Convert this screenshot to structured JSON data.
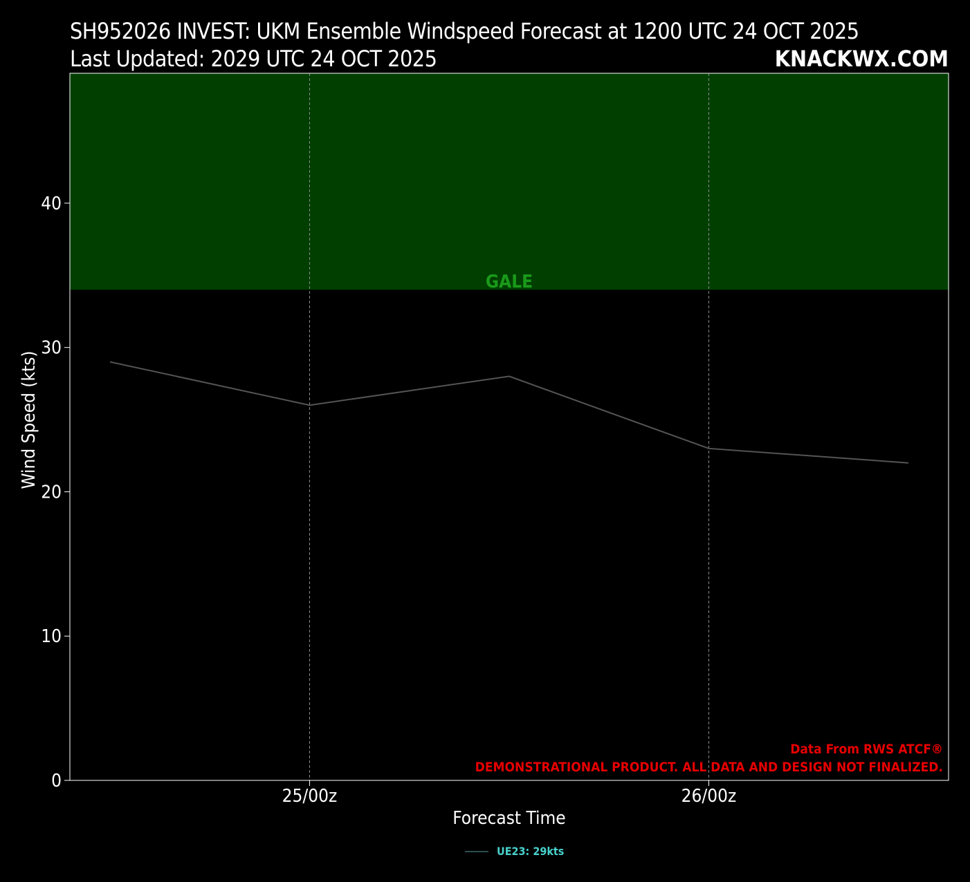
{
  "header": {
    "title_line1": "SH952026 INVEST: UKM Ensemble Windspeed Forecast at 1200 UTC 24 OCT 2025",
    "title_line2": "Last Updated: 2029 UTC 24 OCT 2025",
    "brand": "KNACKWX.COM"
  },
  "chart_data": {
    "type": "line",
    "title": "SH952026 INVEST: UKM Ensemble Windspeed Forecast at 1200 UTC 24 OCT 2025",
    "xlabel": "Forecast Time",
    "ylabel": "Wind Speed (kts)",
    "x_ticks": [
      "25/00z",
      "26/00z"
    ],
    "x": [
      "24/12z",
      "25/00z",
      "25/12z",
      "26/00z",
      "26/12z"
    ],
    "y_ticks": [
      0,
      10,
      20,
      30,
      40
    ],
    "ylim": [
      0,
      49
    ],
    "grid": "vertical dashed at x ticks",
    "bands": [
      {
        "label": "GALE",
        "from": 34,
        "to": 49,
        "color": "#003f00",
        "label_color": "#1a9a1a"
      }
    ],
    "series": [
      {
        "name": "UE23: 29kts",
        "values": [
          29,
          26,
          28,
          23,
          22
        ],
        "color": "#555555"
      }
    ],
    "legend_color": "#48d1cc",
    "legend_placement": "bottom-center",
    "annotations": [
      "Data From RWS ATCF®",
      "DEMONSTRATIONAL PRODUCT. ALL DATA AND DESIGN NOT FINALIZED."
    ],
    "annotation_color": "#e60000"
  }
}
